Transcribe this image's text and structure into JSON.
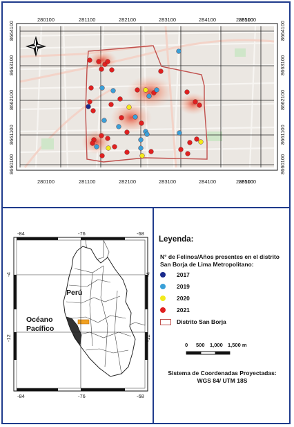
{
  "top_map": {
    "x_ticks": [
      "280100",
      "281100",
      "282100",
      "283100",
      "284100",
      "285100",
      "286100"
    ],
    "y_ticks": [
      "8664100",
      "8663100",
      "8662100",
      "8661100",
      "8660100"
    ],
    "north_arrow": "north-arrow-icon"
  },
  "inset_map": {
    "x_ticks": [
      "-84",
      "-76",
      "-68"
    ],
    "y_ticks": [
      "-4",
      "-12"
    ],
    "label_country": "Perú",
    "label_ocean_line1": "Océano",
    "label_ocean_line2": "Pacífico"
  },
  "legend": {
    "title": "Leyenda:",
    "subtitle": "N° de Felinos/Años presentes en el distrito San Borja de Lima Metropolitano:",
    "items": [
      {
        "label": "2017",
        "color": "#1a2a8c"
      },
      {
        "label": "2019",
        "color": "#3aa0d8"
      },
      {
        "label": "2020",
        "color": "#f2ea1c"
      },
      {
        "label": "2021",
        "color": "#e02020"
      }
    ],
    "boundary_label": "Distrito San Borja",
    "boundary_color": "#c0504d"
  },
  "scale_bar": {
    "labels": [
      "0",
      "500",
      "1,000",
      "1,500 m"
    ]
  },
  "crs": {
    "line1": "Sistema de Coordenadas Proyectadas:",
    "line2": "WGS 84/ UTM 18S"
  }
}
